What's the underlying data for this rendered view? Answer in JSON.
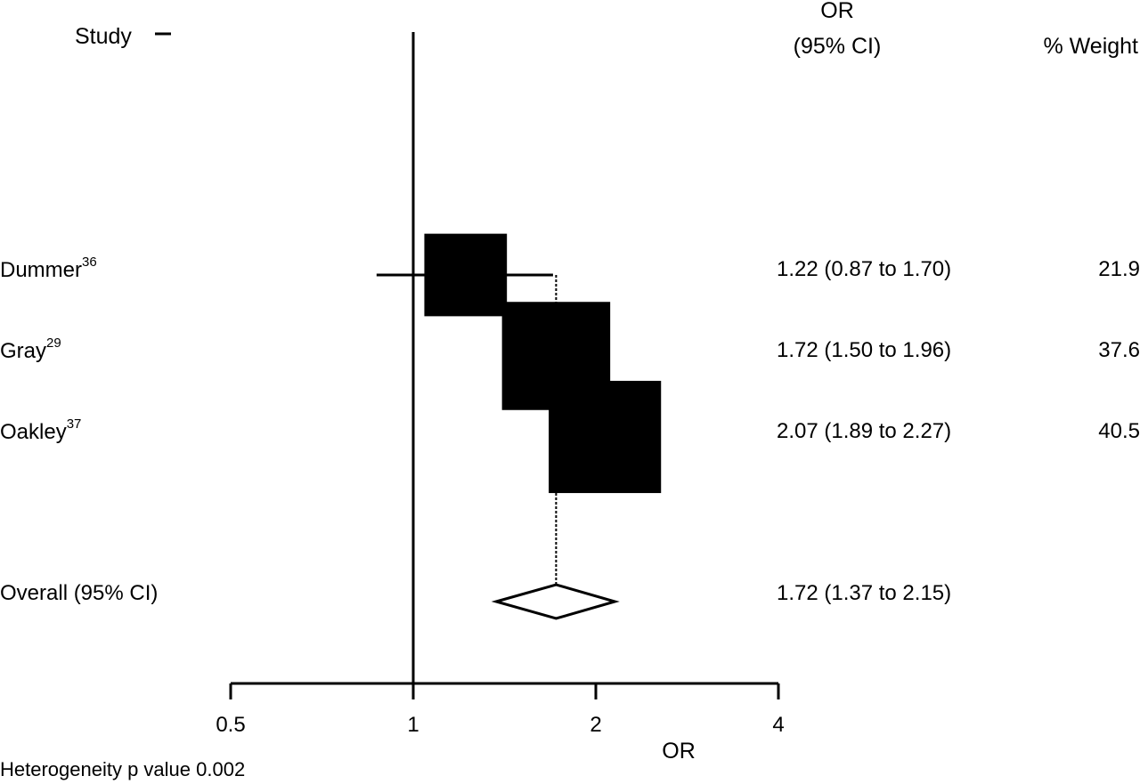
{
  "chart_data": {
    "type": "forest",
    "header": {
      "study_label": "Study",
      "or_label_line1": "OR",
      "or_label_line2": "(95% CI)",
      "weight_label": "% Weight"
    },
    "studies": [
      {
        "name": "Dummer",
        "ref": "36",
        "or": 1.22,
        "lo": 0.87,
        "hi": 1.7,
        "ci_text": "1.22 (0.87 to 1.70)",
        "weight": 21.9,
        "weight_text": "21.9"
      },
      {
        "name": "Gray",
        "ref": "29",
        "or": 1.72,
        "lo": 1.5,
        "hi": 1.96,
        "ci_text": "1.72 (1.50 to 1.96)",
        "weight": 37.6,
        "weight_text": "37.6"
      },
      {
        "name": "Oakley",
        "ref": "37",
        "or": 2.07,
        "lo": 1.89,
        "hi": 2.27,
        "ci_text": "2.07 (1.89 to 2.27)",
        "weight": 40.5,
        "weight_text": "40.5"
      }
    ],
    "overall": {
      "label": "Overall (95% CI)",
      "or": 1.72,
      "lo": 1.37,
      "hi": 2.15,
      "ci_text": "1.72 (1.37 to 2.15)"
    },
    "x_axis": {
      "scale": "log",
      "range": [
        0.5,
        4
      ],
      "ticks": [
        0.5,
        1,
        2,
        4
      ],
      "tick_labels": [
        "0.5",
        "1",
        "2",
        "4"
      ],
      "label": "OR",
      "reference_line": 1
    },
    "footnote": "Heterogeneity p value 0.002"
  }
}
